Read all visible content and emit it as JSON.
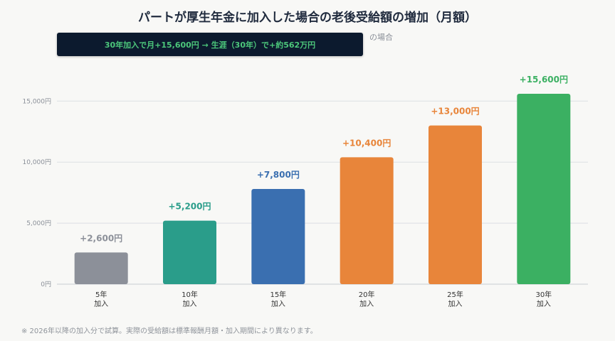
{
  "title": "パートが厚生年金に加入した場合の老後受給額の増加（月額）",
  "subtitle_tail": "の場合",
  "subtitle_paren": "）",
  "tooltip": "30年加入で月+15,600円 → 生涯（30年）で+約562万円",
  "footnote": "※ 2026年以降の加入分で試算。実際の受給額は標準報酬月額・加入期間により異なります。",
  "chart_data": {
    "type": "bar",
    "categories": [
      [
        "5年",
        "加入"
      ],
      [
        "10年",
        "加入"
      ],
      [
        "15年",
        "加入"
      ],
      [
        "20年",
        "加入"
      ],
      [
        "25年",
        "加入"
      ],
      [
        "30年",
        "加入"
      ]
    ],
    "values": [
      2600,
      5200,
      7800,
      10400,
      13000,
      15600
    ],
    "data_labels": [
      "+2,600円",
      "+5,200円",
      "+7,800円",
      "+10,400円",
      "+13,000円",
      "+15,600円"
    ],
    "colors": [
      "#8c9099",
      "#2a9d8a",
      "#3a6fb0",
      "#e8853a",
      "#e8853a",
      "#3bb062"
    ],
    "label_colors": [
      "#8c9099",
      "#2a9d8a",
      "#3a6fb0",
      "#e8853a",
      "#e8853a",
      "#3bb062"
    ],
    "yticks": [
      0,
      5000,
      10000,
      15000
    ],
    "ytick_labels": [
      "0円",
      "5,000円",
      "10,000円",
      "15,000円"
    ],
    "ylim": [
      0,
      15600
    ],
    "grid": true
  }
}
